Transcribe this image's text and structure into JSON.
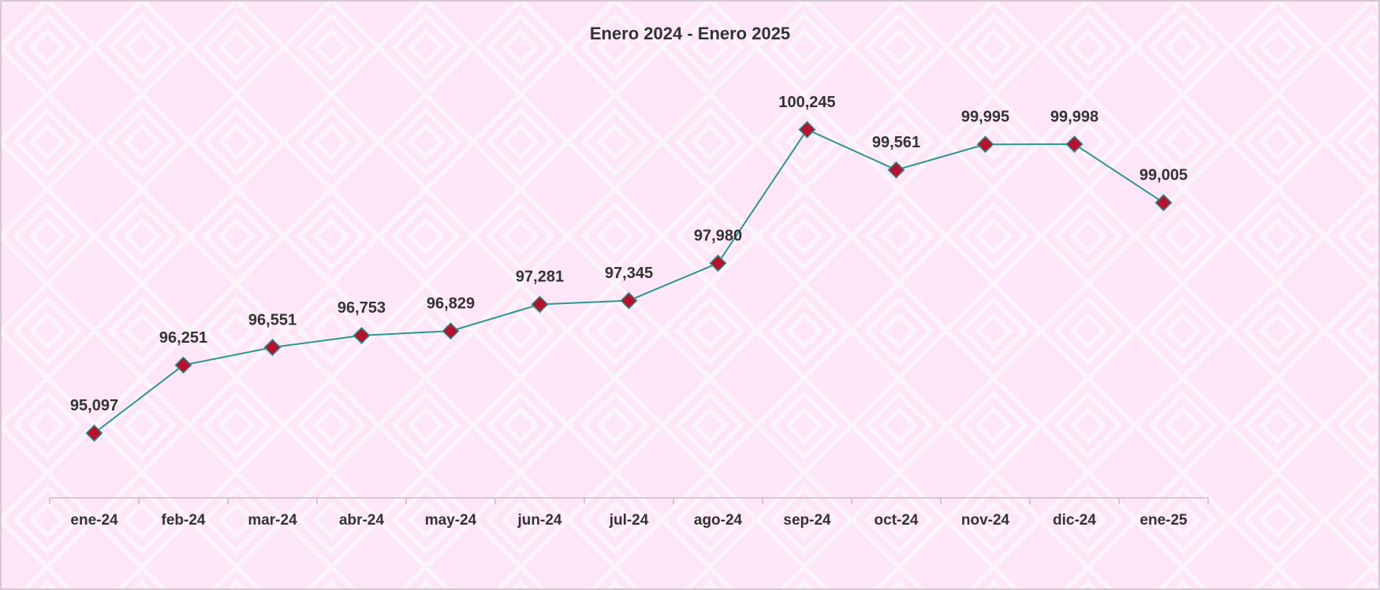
{
  "chart_data": {
    "type": "line",
    "title": "Enero 2024 - Enero 2025",
    "categories": [
      "ene-24",
      "feb-24",
      "mar-24",
      "abr-24",
      "may-24",
      "jun-24",
      "jul-24",
      "ago-24",
      "sep-24",
      "oct-24",
      "nov-24",
      "dic-24",
      "ene-25"
    ],
    "values": [
      95097,
      96251,
      96551,
      96753,
      96829,
      97281,
      97345,
      97980,
      100245,
      99561,
      99995,
      99998,
      99005
    ],
    "value_labels": [
      "95,097",
      "96,251",
      "96,551",
      "96,753",
      "96,829",
      "97,281",
      "97,345",
      "97,980",
      "100,245",
      "99,561",
      "99,995",
      "99,998",
      "99,005"
    ],
    "color": "#2a978c",
    "marker_color": "#b5122f",
    "ylim": [
      94000,
      101000
    ]
  }
}
